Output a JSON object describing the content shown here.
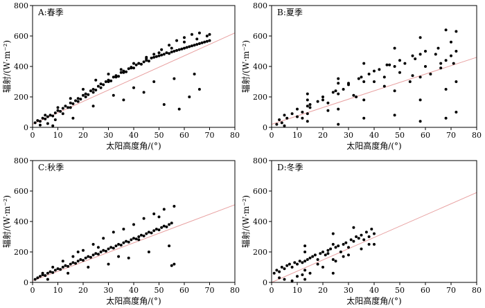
{
  "chart_data": [
    {
      "type": "scatter",
      "panel_label": "A:春季",
      "xlabel": "太阳高度角/(°)",
      "ylabel": "辐射/(W·m⁻²)",
      "xlim": [
        0,
        80
      ],
      "ylim": [
        0,
        800
      ],
      "xticks": [
        "0",
        "10",
        "20",
        "30",
        "40",
        "50",
        "60",
        "70",
        "80"
      ],
      "yticks": [
        "0",
        "200",
        "400",
        "600",
        "800"
      ],
      "grid": false,
      "point_color": "#000000",
      "fit_color": "#e8a0a0",
      "fit_line": {
        "x": [
          0,
          80
        ],
        "y": [
          20,
          620
        ]
      },
      "x": [
        1,
        2,
        3,
        4,
        5,
        6,
        7,
        8,
        9,
        10,
        11,
        12,
        13,
        14,
        15,
        16,
        17,
        18,
        19,
        20,
        21,
        22,
        23,
        24,
        25,
        26,
        27,
        28,
        29,
        30,
        31,
        32,
        33,
        34,
        35,
        36,
        37,
        38,
        39,
        40,
        41,
        42,
        43,
        44,
        45,
        46,
        47,
        48,
        49,
        50,
        51,
        52,
        53,
        54,
        55,
        56,
        57,
        58,
        59,
        60,
        61,
        62,
        63,
        64,
        65,
        66,
        67,
        68,
        69,
        70,
        3,
        6,
        9,
        12,
        15,
        18,
        21,
        24,
        27,
        30,
        33,
        36,
        39,
        42,
        45,
        48,
        51,
        54,
        57,
        60,
        63,
        66,
        69,
        5,
        10,
        15,
        20,
        25,
        30,
        35,
        40,
        45,
        50,
        55,
        60,
        65,
        70,
        8,
        16,
        24,
        32,
        40,
        48,
        56,
        64,
        36,
        44,
        52,
        58,
        62,
        66
      ],
      "y": [
        30,
        45,
        40,
        60,
        55,
        70,
        80,
        75,
        95,
        110,
        105,
        125,
        140,
        130,
        160,
        155,
        175,
        190,
        185,
        210,
        220,
        215,
        240,
        250,
        245,
        270,
        285,
        280,
        300,
        310,
        305,
        330,
        340,
        335,
        360,
        370,
        365,
        385,
        395,
        390,
        410,
        420,
        415,
        430,
        440,
        435,
        455,
        460,
        465,
        470,
        475,
        480,
        490,
        485,
        495,
        500,
        505,
        510,
        515,
        520,
        525,
        530,
        535,
        540,
        545,
        550,
        555,
        560,
        565,
        570,
        15,
        25,
        50,
        90,
        130,
        170,
        200,
        230,
        260,
        300,
        330,
        360,
        390,
        420,
        450,
        480,
        510,
        540,
        570,
        590,
        610,
        620,
        600,
        80,
        130,
        190,
        250,
        310,
        350,
        380,
        420,
        460,
        490,
        520,
        560,
        580,
        610,
        10,
        60,
        140,
        210,
        260,
        300,
        320,
        350,
        180,
        230,
        150,
        120,
        200,
        250
      ]
    },
    {
      "type": "scatter",
      "panel_label": "B:夏季",
      "xlabel": "太阳高度角/(°)",
      "ylabel": "辐射/(W·m⁻²)",
      "xlim": [
        0,
        80
      ],
      "ylim": [
        0,
        800
      ],
      "xticks": [
        "0",
        "10",
        "20",
        "30",
        "40",
        "50",
        "60",
        "70",
        "80"
      ],
      "yticks": [
        "0",
        "200",
        "400",
        "600",
        "800"
      ],
      "grid": false,
      "point_color": "#000000",
      "fit_color": "#e8a0a0",
      "fit_line": {
        "x": [
          0,
          80
        ],
        "y": [
          20,
          460
        ]
      },
      "x": [
        2,
        3,
        4,
        5,
        6,
        8,
        10,
        12,
        14,
        14,
        14,
        14,
        14,
        15,
        18,
        20,
        22,
        24,
        26,
        26,
        26,
        26,
        26,
        28,
        30,
        32,
        34,
        36,
        36,
        36,
        36,
        38,
        40,
        42,
        44,
        46,
        48,
        48,
        48,
        48,
        50,
        52,
        54,
        56,
        58,
        58,
        58,
        58,
        58,
        60,
        62,
        64,
        66,
        68,
        68,
        68,
        68,
        70,
        72,
        72,
        72,
        72,
        5,
        10,
        15,
        20,
        25,
        30,
        35,
        40,
        45,
        50,
        55,
        60,
        65,
        70,
        12,
        22,
        33,
        44,
        55,
        66,
        71
      ],
      "y": [
        20,
        50,
        30,
        80,
        60,
        90,
        120,
        100,
        40,
        90,
        140,
        180,
        220,
        150,
        170,
        200,
        160,
        230,
        20,
        120,
        220,
        290,
        320,
        250,
        280,
        210,
        320,
        60,
        180,
        300,
        420,
        350,
        300,
        380,
        330,
        410,
        80,
        240,
        400,
        520,
        360,
        420,
        300,
        450,
        40,
        180,
        330,
        480,
        590,
        400,
        350,
        480,
        420,
        60,
        250,
        440,
        640,
        470,
        100,
        300,
        500,
        630,
        10,
        70,
        130,
        180,
        240,
        290,
        330,
        370,
        410,
        440,
        470,
        500,
        520,
        560,
        60,
        110,
        200,
        270,
        340,
        390,
        420
      ]
    },
    {
      "type": "scatter",
      "panel_label": "C:秋季",
      "xlabel": "太阳高度角/(°)",
      "ylabel": "辐射/(W·m⁻²)",
      "xlim": [
        0,
        80
      ],
      "ylim": [
        0,
        800
      ],
      "xticks": [
        "0",
        "10",
        "20",
        "30",
        "40",
        "50",
        "60",
        "70",
        "80"
      ],
      "yticks": [
        "0",
        "200",
        "400",
        "600",
        "800"
      ],
      "grid": false,
      "point_color": "#000000",
      "fit_color": "#e8a0a0",
      "fit_line": {
        "x": [
          0,
          80
        ],
        "y": [
          10,
          510
        ]
      },
      "x": [
        1,
        2,
        3,
        4,
        5,
        6,
        7,
        8,
        9,
        10,
        11,
        12,
        13,
        14,
        15,
        16,
        17,
        18,
        19,
        20,
        21,
        22,
        23,
        24,
        25,
        26,
        27,
        28,
        29,
        30,
        31,
        32,
        33,
        34,
        35,
        36,
        37,
        38,
        39,
        40,
        41,
        42,
        43,
        44,
        45,
        46,
        47,
        48,
        49,
        50,
        51,
        52,
        53,
        54,
        55,
        56,
        4,
        8,
        12,
        16,
        20,
        24,
        28,
        32,
        36,
        40,
        44,
        48,
        52,
        56,
        6,
        14,
        22,
        30,
        38,
        46,
        54,
        18,
        26,
        34,
        42,
        50,
        55
      ],
      "y": [
        20,
        30,
        40,
        50,
        45,
        60,
        70,
        65,
        80,
        90,
        85,
        100,
        110,
        105,
        120,
        130,
        125,
        140,
        150,
        145,
        160,
        170,
        165,
        180,
        190,
        185,
        200,
        210,
        205,
        220,
        230,
        225,
        240,
        250,
        245,
        260,
        270,
        265,
        280,
        290,
        285,
        300,
        310,
        305,
        320,
        330,
        325,
        340,
        350,
        345,
        360,
        370,
        365,
        380,
        390,
        120,
        60,
        100,
        140,
        170,
        210,
        250,
        290,
        330,
        350,
        380,
        420,
        450,
        480,
        500,
        20,
        60,
        100,
        120,
        160,
        200,
        240,
        200,
        230,
        170,
        280,
        430,
        110
      ]
    },
    {
      "type": "scatter",
      "panel_label": "D:冬季",
      "xlabel": "太阳高度角/(°)",
      "ylabel": "辐射/(W·m⁻²)",
      "xlim": [
        0,
        80
      ],
      "ylim": [
        0,
        800
      ],
      "xticks": [
        "0",
        "10",
        "20",
        "30",
        "40",
        "50",
        "60",
        "70",
        "80"
      ],
      "yticks": [
        "0",
        "200",
        "400",
        "600",
        "800"
      ],
      "grid": false,
      "point_color": "#000000",
      "fit_color": "#e8a0a0",
      "fit_line": {
        "x": [
          0,
          80
        ],
        "y": [
          0,
          590
        ]
      },
      "x": [
        1,
        2,
        3,
        4,
        5,
        6,
        7,
        8,
        9,
        10,
        11,
        12,
        13,
        13,
        13,
        13,
        13,
        14,
        15,
        16,
        17,
        18,
        19,
        20,
        21,
        22,
        23,
        24,
        24,
        24,
        24,
        25,
        26,
        27,
        28,
        29,
        30,
        31,
        32,
        33,
        34,
        35,
        36,
        37,
        38,
        39,
        40,
        5,
        10,
        15,
        20,
        25,
        30,
        35,
        40,
        8,
        18,
        28,
        38,
        3,
        12,
        22,
        32
      ],
      "y": [
        60,
        80,
        70,
        100,
        90,
        110,
        120,
        100,
        130,
        120,
        140,
        130,
        20,
        80,
        140,
        200,
        240,
        150,
        160,
        170,
        180,
        150,
        190,
        200,
        180,
        210,
        220,
        60,
        150,
        250,
        320,
        230,
        240,
        200,
        250,
        260,
        230,
        280,
        270,
        300,
        290,
        310,
        280,
        330,
        300,
        350,
        320,
        20,
        40,
        60,
        100,
        140,
        180,
        220,
        250,
        10,
        120,
        170,
        250,
        30,
        50,
        190,
        360
      ]
    }
  ]
}
